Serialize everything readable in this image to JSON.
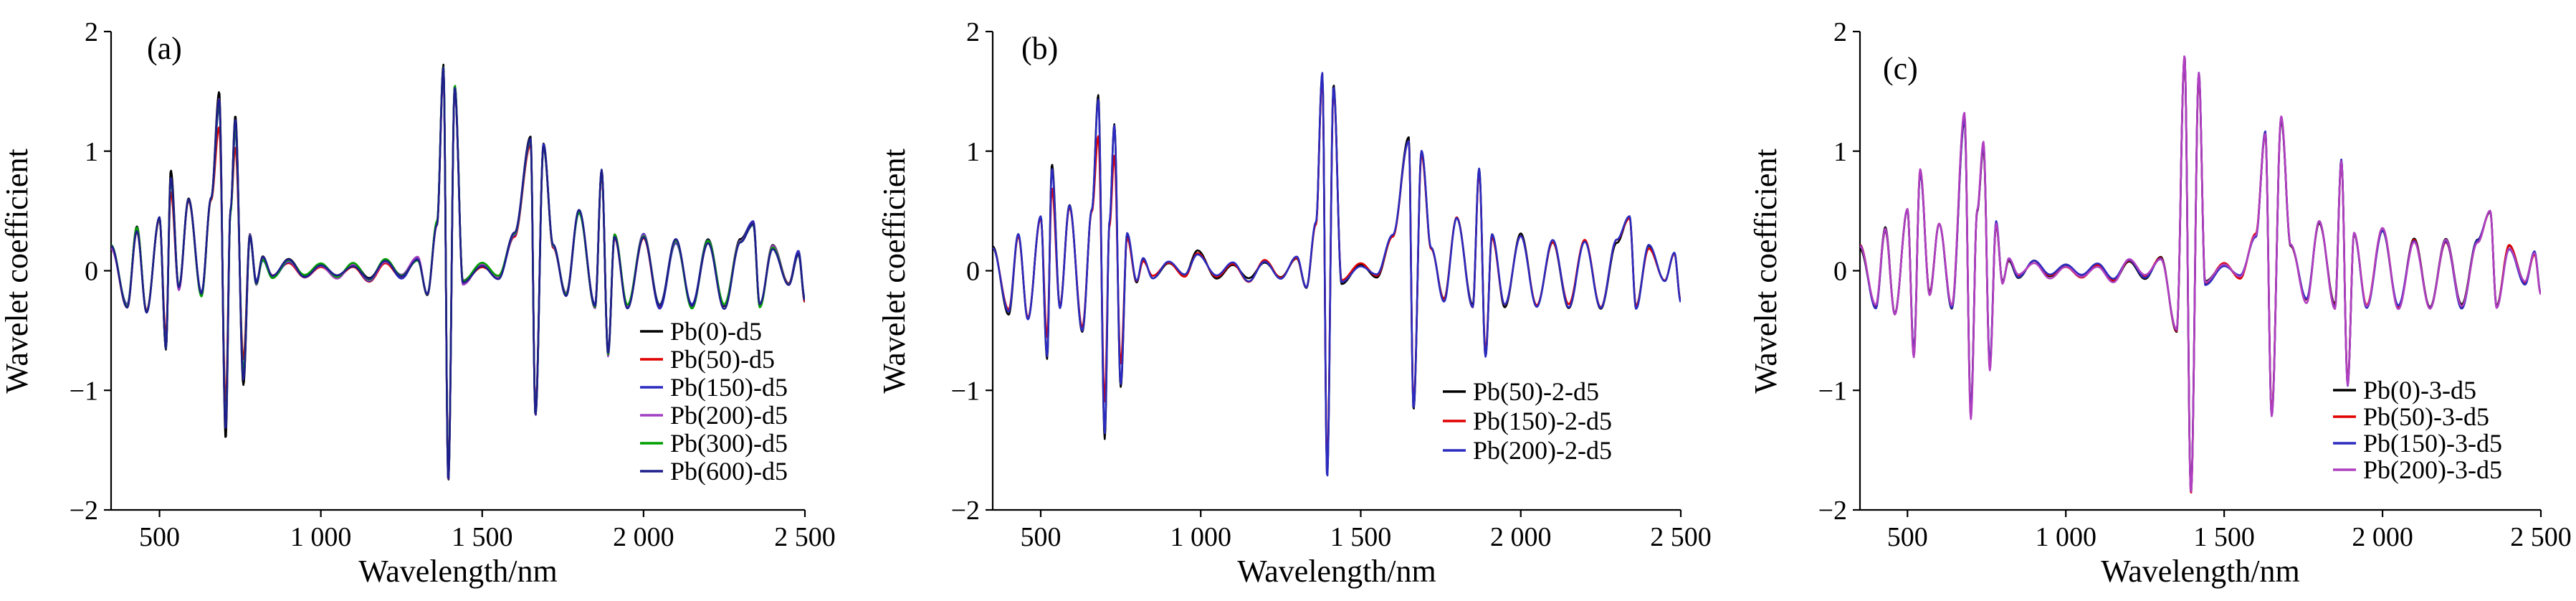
{
  "chart_data": [
    {
      "type": "line",
      "panel_label": "(a)",
      "xlabel": "Wavelength/nm",
      "ylabel": "Wavelet coefficient",
      "xlim": [
        350,
        2500
      ],
      "ylim": [
        -2,
        2
      ],
      "xticks": [
        500,
        1000,
        1500,
        2000,
        2500
      ],
      "xtick_labels": [
        "500",
        "1 000",
        "1 500",
        "2 000",
        "2 500"
      ],
      "yticks": [
        -2,
        -1,
        0,
        1,
        2
      ],
      "ytick_labels": [
        "−2",
        "−1",
        "0",
        "1",
        "2"
      ],
      "legend_position": "lower-right",
      "feature_points": [
        [
          350,
          0.2
        ],
        [
          400,
          -0.3
        ],
        [
          430,
          0.35
        ],
        [
          460,
          -0.35
        ],
        [
          500,
          0.45
        ],
        [
          520,
          -0.65
        ],
        [
          535,
          0.8
        ],
        [
          560,
          -0.15
        ],
        [
          590,
          0.6
        ],
        [
          630,
          -0.2
        ],
        [
          660,
          0.6
        ],
        [
          685,
          1.45
        ],
        [
          705,
          -1.35
        ],
        [
          720,
          0.5
        ],
        [
          735,
          1.25
        ],
        [
          760,
          -0.9
        ],
        [
          780,
          0.3
        ],
        [
          800,
          -0.1
        ],
        [
          820,
          0.1
        ],
        [
          850,
          -0.05
        ],
        [
          900,
          0.08
        ],
        [
          950,
          -0.05
        ],
        [
          1000,
          0.05
        ],
        [
          1050,
          -0.05
        ],
        [
          1100,
          0.05
        ],
        [
          1150,
          -0.08
        ],
        [
          1200,
          0.08
        ],
        [
          1250,
          -0.05
        ],
        [
          1300,
          0.1
        ],
        [
          1330,
          -0.2
        ],
        [
          1360,
          0.4
        ],
        [
          1380,
          1.7
        ],
        [
          1395,
          -1.75
        ],
        [
          1415,
          1.55
        ],
        [
          1440,
          -0.1
        ],
        [
          1500,
          0.05
        ],
        [
          1550,
          -0.05
        ],
        [
          1600,
          0.3
        ],
        [
          1650,
          1.1
        ],
        [
          1665,
          -1.2
        ],
        [
          1690,
          1.05
        ],
        [
          1720,
          0.2
        ],
        [
          1760,
          -0.2
        ],
        [
          1800,
          0.5
        ],
        [
          1850,
          -0.3
        ],
        [
          1870,
          0.85
        ],
        [
          1890,
          -0.7
        ],
        [
          1910,
          0.3
        ],
        [
          1950,
          -0.3
        ],
        [
          2000,
          0.3
        ],
        [
          2050,
          -0.3
        ],
        [
          2100,
          0.25
        ],
        [
          2150,
          -0.3
        ],
        [
          2200,
          0.25
        ],
        [
          2250,
          -0.3
        ],
        [
          2300,
          0.25
        ],
        [
          2340,
          0.4
        ],
        [
          2360,
          -0.3
        ],
        [
          2400,
          0.2
        ],
        [
          2450,
          -0.1
        ],
        [
          2480,
          0.15
        ],
        [
          2500,
          -0.25
        ]
      ],
      "series": [
        {
          "name": "Pb(0)-d5",
          "color": "#000000",
          "peak_scale": 1.04,
          "noise_seed": 1
        },
        {
          "name": "Pb(50)-d5",
          "color": "#e00000",
          "peak_scale": 0.82,
          "noise_seed": 2
        },
        {
          "name": "Pb(150)-d5",
          "color": "#2b2bbf",
          "peak_scale": 0.95,
          "noise_seed": 3
        },
        {
          "name": "Pb(200)-d5",
          "color": "#a040c0",
          "peak_scale": 0.98,
          "noise_seed": 4
        },
        {
          "name": "Pb(300)-d5",
          "color": "#00a000",
          "peak_scale": 0.97,
          "noise_seed": 5
        },
        {
          "name": "Pb(600)-d5",
          "color": "#1e1e8c",
          "peak_scale": 1.0,
          "noise_seed": 6
        }
      ]
    },
    {
      "type": "line",
      "panel_label": "(b)",
      "xlabel": "Wavelength/nm",
      "ylabel": "Wavelet coefficient",
      "xlim": [
        350,
        2500
      ],
      "ylim": [
        -2,
        2
      ],
      "xticks": [
        500,
        1000,
        1500,
        2000,
        2500
      ],
      "xtick_labels": [
        "500",
        "1 000",
        "1 500",
        "2 000",
        "2 500"
      ],
      "yticks": [
        -2,
        -1,
        0,
        1,
        2
      ],
      "ytick_labels": [
        "−2",
        "−1",
        "0",
        "1",
        "2"
      ],
      "legend_position": "lower-right",
      "feature_points": [
        [
          350,
          0.2
        ],
        [
          400,
          -0.35
        ],
        [
          430,
          0.3
        ],
        [
          460,
          -0.4
        ],
        [
          500,
          0.45
        ],
        [
          520,
          -0.7
        ],
        [
          535,
          0.85
        ],
        [
          560,
          -0.3
        ],
        [
          590,
          0.55
        ],
        [
          630,
          -0.5
        ],
        [
          660,
          0.5
        ],
        [
          680,
          1.42
        ],
        [
          700,
          -1.35
        ],
        [
          715,
          0.4
        ],
        [
          730,
          1.2
        ],
        [
          750,
          -0.95
        ],
        [
          770,
          0.3
        ],
        [
          800,
          -0.1
        ],
        [
          820,
          0.1
        ],
        [
          850,
          -0.05
        ],
        [
          900,
          0.08
        ],
        [
          950,
          -0.05
        ],
        [
          990,
          0.15
        ],
        [
          1050,
          -0.05
        ],
        [
          1100,
          0.05
        ],
        [
          1150,
          -0.08
        ],
        [
          1200,
          0.08
        ],
        [
          1250,
          -0.05
        ],
        [
          1300,
          0.1
        ],
        [
          1330,
          -0.15
        ],
        [
          1360,
          0.4
        ],
        [
          1380,
          1.65
        ],
        [
          1395,
          -1.72
        ],
        [
          1415,
          1.55
        ],
        [
          1440,
          -0.1
        ],
        [
          1500,
          0.05
        ],
        [
          1550,
          -0.05
        ],
        [
          1600,
          0.3
        ],
        [
          1650,
          1.1
        ],
        [
          1665,
          -1.15
        ],
        [
          1690,
          1.0
        ],
        [
          1720,
          0.2
        ],
        [
          1760,
          -0.25
        ],
        [
          1800,
          0.45
        ],
        [
          1850,
          -0.3
        ],
        [
          1870,
          0.85
        ],
        [
          1890,
          -0.7
        ],
        [
          1910,
          0.3
        ],
        [
          1950,
          -0.3
        ],
        [
          2000,
          0.3
        ],
        [
          2050,
          -0.3
        ],
        [
          2100,
          0.25
        ],
        [
          2150,
          -0.3
        ],
        [
          2200,
          0.25
        ],
        [
          2250,
          -0.3
        ],
        [
          2300,
          0.25
        ],
        [
          2340,
          0.45
        ],
        [
          2360,
          -0.3
        ],
        [
          2400,
          0.2
        ],
        [
          2450,
          -0.1
        ],
        [
          2480,
          0.15
        ],
        [
          2500,
          -0.25
        ]
      ],
      "series": [
        {
          "name": "Pb(50)-2-d5",
          "color": "#000000",
          "peak_scale": 1.03,
          "noise_seed": 7
        },
        {
          "name": "Pb(150)-2-d5",
          "color": "#e00000",
          "peak_scale": 0.8,
          "noise_seed": 8
        },
        {
          "name": "Pb(200)-2-d5",
          "color": "#2b2bbf",
          "peak_scale": 1.0,
          "noise_seed": 9
        }
      ]
    },
    {
      "type": "line",
      "panel_label": "(c)",
      "xlabel": "Wavelength/nm",
      "ylabel": "Wavelet coefficient",
      "xlim": [
        350,
        2500
      ],
      "ylim": [
        -2,
        2
      ],
      "xticks": [
        500,
        1000,
        1500,
        2000,
        2500
      ],
      "xtick_labels": [
        "500",
        "1 000",
        "1 500",
        "2 000",
        "2 500"
      ],
      "yticks": [
        -2,
        -1,
        0,
        1,
        2
      ],
      "ytick_labels": [
        "−2",
        "−1",
        "0",
        "1",
        "2"
      ],
      "legend_position": "lower-right",
      "feature_points": [
        [
          350,
          0.2
        ],
        [
          400,
          -0.3
        ],
        [
          430,
          0.35
        ],
        [
          460,
          -0.35
        ],
        [
          500,
          0.5
        ],
        [
          520,
          -0.7
        ],
        [
          540,
          0.85
        ],
        [
          570,
          -0.2
        ],
        [
          600,
          0.4
        ],
        [
          640,
          -0.3
        ],
        [
          680,
          1.28
        ],
        [
          700,
          -1.2
        ],
        [
          720,
          0.5
        ],
        [
          740,
          1.05
        ],
        [
          760,
          -0.8
        ],
        [
          780,
          0.4
        ],
        [
          800,
          -0.1
        ],
        [
          820,
          0.1
        ],
        [
          850,
          -0.05
        ],
        [
          900,
          0.08
        ],
        [
          950,
          -0.05
        ],
        [
          1000,
          0.05
        ],
        [
          1050,
          -0.05
        ],
        [
          1100,
          0.05
        ],
        [
          1150,
          -0.08
        ],
        [
          1200,
          0.08
        ],
        [
          1250,
          -0.05
        ],
        [
          1300,
          0.1
        ],
        [
          1350,
          -0.5
        ],
        [
          1375,
          1.78
        ],
        [
          1395,
          -1.85
        ],
        [
          1420,
          1.65
        ],
        [
          1440,
          -0.1
        ],
        [
          1500,
          0.05
        ],
        [
          1550,
          -0.05
        ],
        [
          1600,
          0.3
        ],
        [
          1630,
          1.15
        ],
        [
          1650,
          -1.2
        ],
        [
          1680,
          1.28
        ],
        [
          1710,
          0.2
        ],
        [
          1760,
          -0.25
        ],
        [
          1800,
          0.4
        ],
        [
          1850,
          -0.3
        ],
        [
          1870,
          0.92
        ],
        [
          1890,
          -0.95
        ],
        [
          1910,
          0.3
        ],
        [
          1950,
          -0.3
        ],
        [
          2000,
          0.35
        ],
        [
          2050,
          -0.3
        ],
        [
          2100,
          0.25
        ],
        [
          2150,
          -0.3
        ],
        [
          2200,
          0.25
        ],
        [
          2250,
          -0.3
        ],
        [
          2300,
          0.25
        ],
        [
          2340,
          0.5
        ],
        [
          2360,
          -0.3
        ],
        [
          2400,
          0.2
        ],
        [
          2450,
          -0.1
        ],
        [
          2480,
          0.15
        ],
        [
          2500,
          -0.2
        ]
      ],
      "series": [
        {
          "name": "Pb(0)-3-d5",
          "color": "#000000",
          "peak_scale": 0.97,
          "noise_seed": 10
        },
        {
          "name": "Pb(50)-3-d5",
          "color": "#e00000",
          "peak_scale": 1.0,
          "noise_seed": 11
        },
        {
          "name": "Pb(150)-3-d5",
          "color": "#2b2bbf",
          "peak_scale": 0.98,
          "noise_seed": 12
        },
        {
          "name": "Pb(200)-3-d5",
          "color": "#b040c0",
          "peak_scale": 1.02,
          "noise_seed": 13
        }
      ]
    }
  ]
}
